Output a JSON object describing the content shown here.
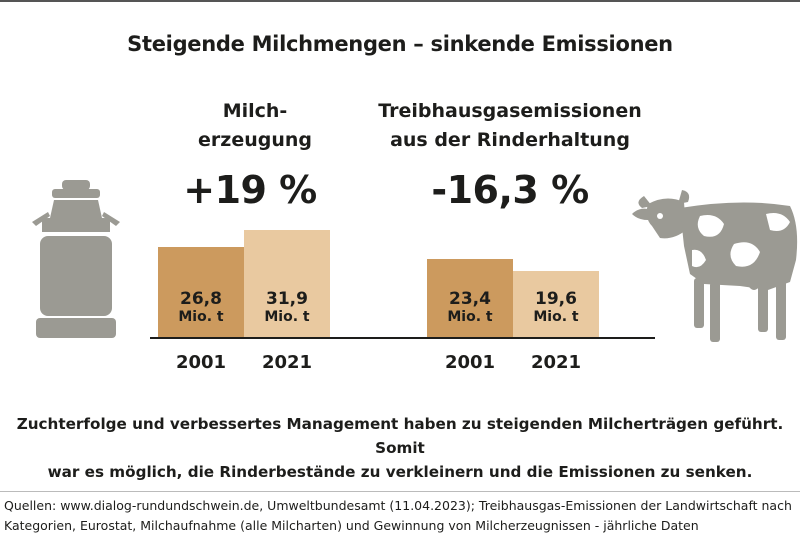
{
  "title": "Steigende Milchmengen – sinkende Emissionen",
  "colors": {
    "bar_2001": "#cc9a5e",
    "bar_2021": "#e9c9a0",
    "icon": "#9b9a93",
    "axis": "#1d1d1b"
  },
  "chart_data": [
    {
      "type": "bar",
      "title_lines": [
        "Milch-",
        "erzeugung"
      ],
      "change": "+19 %",
      "categories": [
        "2001",
        "2021"
      ],
      "values": [
        26.8,
        31.9
      ],
      "value_labels": [
        "26,8",
        "31,9"
      ],
      "unit": "Mio. t",
      "ylim": [
        0,
        32.5
      ]
    },
    {
      "type": "bar",
      "title_lines": [
        "Treibhausgasemissionen",
        "aus der Rinderhaltung"
      ],
      "change": "-16,3 %",
      "categories": [
        "2001",
        "2021"
      ],
      "values": [
        23.4,
        19.6
      ],
      "value_labels": [
        "23,4",
        "19,6"
      ],
      "unit": "Mio. t",
      "ylim": [
        0,
        32.5
      ]
    }
  ],
  "icons": [
    "milk-can-icon",
    "cow-icon"
  ],
  "note_lines": [
    "Zuchterfolge und verbessertes Management haben zu steigenden Milcherträgen geführt. Somit",
    "war es möglich, die Rinderbestände zu verkleinern und die Emissionen zu senken."
  ],
  "source_lines": [
    "Quellen: www.dialog-rundundschwein.de, Umweltbundesamt (11.04.2023); Treibhausgas-Emissionen der Landwirtschaft nach",
    "Kategorien, Eurostat, Milchaufnahme (alle Milcharten) und Gewinnung von Milcherzeugnissen - jährliche Daten"
  ]
}
